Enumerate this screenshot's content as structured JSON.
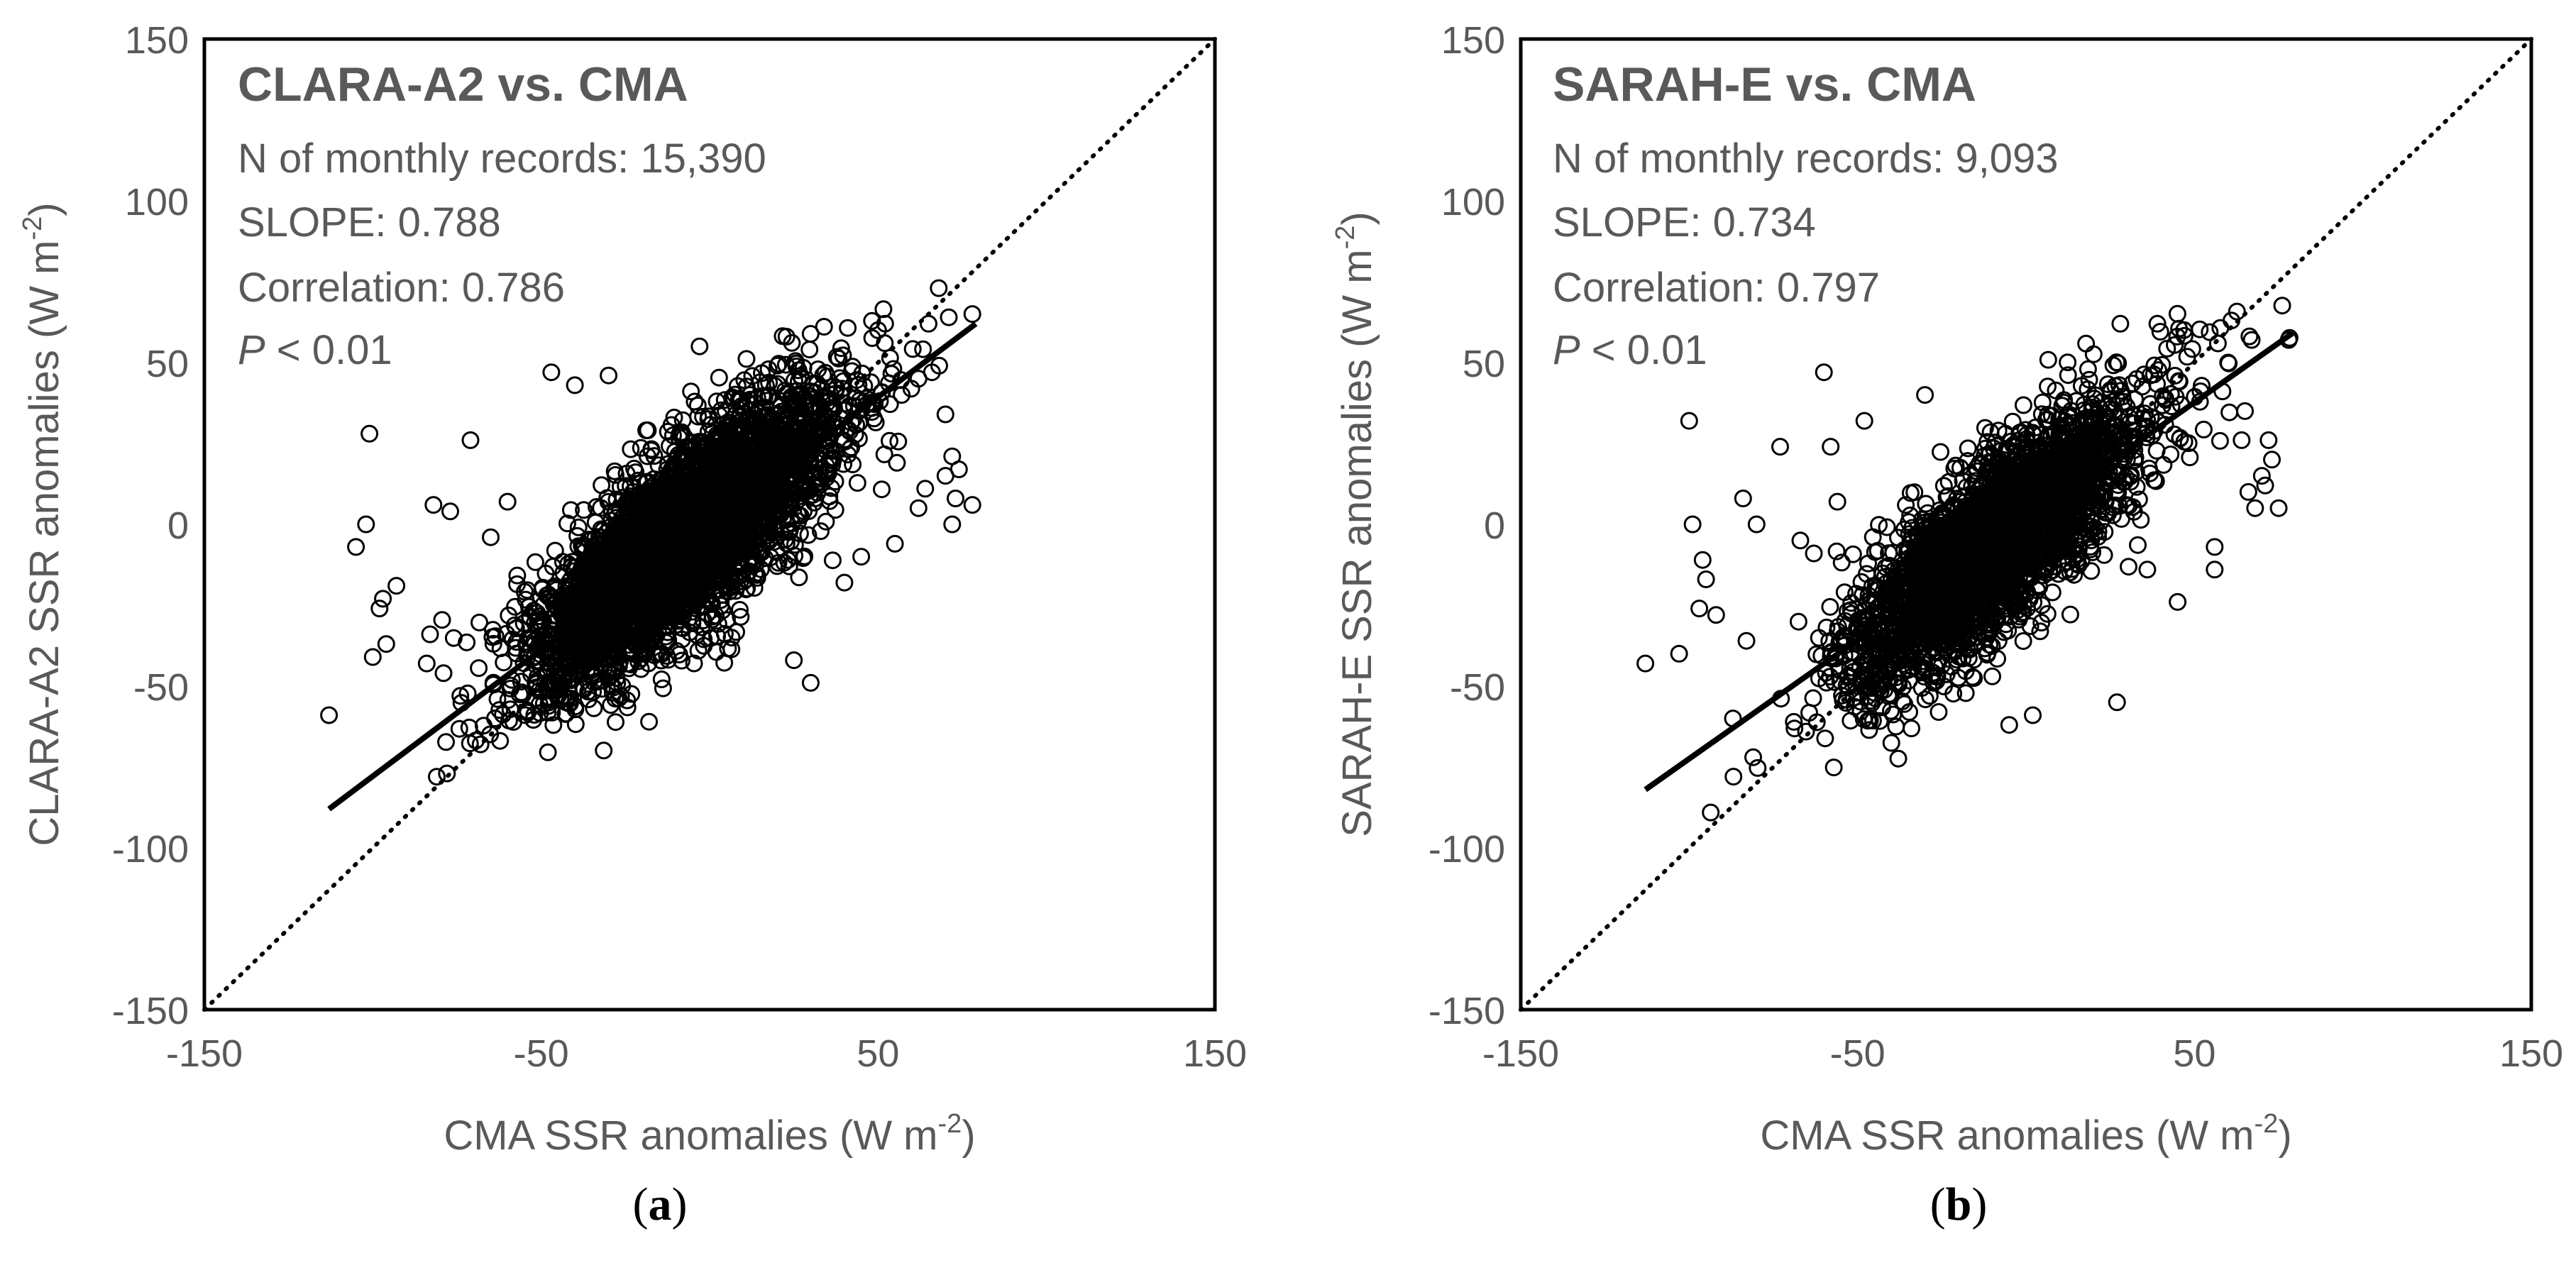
{
  "chart_data": [
    {
      "type": "scatter",
      "panel_label": "a",
      "title": "CLARA-A2 vs. CMA",
      "stats": {
        "n_records": "N of monthly records: 15,390",
        "slope": "SLOPE: 0.788",
        "correlation": "Correlation: 0.786",
        "p_symbol": "P",
        "p_rest": " < 0.01"
      },
      "xlabel_main": "CMA SSR anomalies (W m",
      "xlabel_sup": "-2",
      "xlabel_end": ")",
      "ylabel_main": "CLARA-A2 SSR anomalies (W m",
      "ylabel_sup": "-2",
      "ylabel_end": ")",
      "xlim": [
        -150,
        150
      ],
      "ylim": [
        -150,
        150
      ],
      "xticks": [
        -150,
        -50,
        50,
        150
      ],
      "yticks": [
        -150,
        -100,
        -50,
        0,
        50,
        100,
        150
      ],
      "fit_line": {
        "slope": 0.788,
        "x": [
          -113,
          79
        ],
        "y": [
          -88,
          62
        ]
      },
      "identity_line": true,
      "cloud": {
        "n_points": 15390,
        "center": [
          -8,
          -5
        ],
        "spread": [
          22,
          22
        ],
        "correlation": 0.786
      },
      "outliers": [
        [
          -113,
          -59
        ],
        [
          -105,
          -7
        ],
        [
          -102,
          0
        ],
        [
          -101,
          28
        ],
        [
          -100,
          -41
        ],
        [
          -98,
          -26
        ],
        [
          -97,
          -23
        ],
        [
          -96,
          -37
        ],
        [
          -93,
          -19
        ],
        [
          -84,
          -43
        ],
        [
          -83,
          -34
        ],
        [
          -82,
          6
        ],
        [
          -81,
          -78
        ],
        [
          -79,
          -46
        ],
        [
          -78,
          -77
        ],
        [
          -77,
          4
        ],
        [
          -74,
          -53
        ],
        [
          -71,
          26
        ],
        [
          -68,
          -68
        ],
        [
          -65,
          -4
        ],
        [
          -63,
          -54
        ],
        [
          -60,
          7
        ],
        [
          -47,
          47
        ],
        [
          -40,
          43
        ],
        [
          -30,
          46
        ],
        [
          -18,
          -61
        ],
        [
          -3,
          55
        ],
        [
          30,
          -49
        ],
        [
          25,
          -42
        ],
        [
          50,
          60
        ],
        [
          52,
          56
        ],
        [
          55,
          -6
        ],
        [
          62,
          5
        ],
        [
          64,
          11
        ],
        [
          65,
          62
        ],
        [
          68,
          73
        ],
        [
          70,
          15
        ],
        [
          71,
          64
        ],
        [
          72,
          0
        ],
        [
          72,
          21
        ],
        [
          73,
          8
        ],
        [
          74,
          17
        ],
        [
          78,
          6
        ],
        [
          78,
          65
        ],
        [
          45,
          -10
        ],
        [
          40,
          -18
        ],
        [
          57,
          40
        ],
        [
          62,
          45
        ],
        [
          66,
          47
        ],
        [
          70,
          34
        ]
      ]
    },
    {
      "type": "scatter",
      "panel_label": "b",
      "title": "SARAH-E vs. CMA",
      "stats": {
        "n_records": "N of monthly records: 9,093",
        "slope": "SLOPE: 0.734",
        "correlation": "Correlation: 0.797",
        "p_symbol": "P",
        "p_rest": " < 0.01"
      },
      "xlabel_main": "CMA SSR anomalies (W m",
      "xlabel_sup": "-2",
      "xlabel_end": ")",
      "ylabel_main": "SARAH-E SSR anomalies (W m",
      "ylabel_sup": "-2",
      "ylabel_end": ")",
      "xlim": [
        -150,
        150
      ],
      "ylim": [
        -150,
        150
      ],
      "xticks": [
        -150,
        -50,
        50,
        150
      ],
      "yticks": [
        -150,
        -100,
        -50,
        0,
        50,
        100,
        150
      ],
      "fit_line": {
        "slope": 0.734,
        "x": [
          -113,
          79
        ],
        "y": [
          -82,
          59
        ]
      },
      "identity_line": true,
      "cloud": {
        "n_points": 9093,
        "center": [
          -8,
          -5
        ],
        "spread": [
          21,
          21
        ],
        "correlation": 0.797
      },
      "outliers": [
        [
          -113,
          -43
        ],
        [
          -103,
          -40
        ],
        [
          -100,
          32
        ],
        [
          -99,
          0
        ],
        [
          -97,
          -26
        ],
        [
          -96,
          -11
        ],
        [
          -95,
          -17
        ],
        [
          -92,
          -28
        ],
        [
          -87,
          -60
        ],
        [
          -84,
          8
        ],
        [
          -83,
          -36
        ],
        [
          -81,
          -72
        ],
        [
          -80,
          0
        ],
        [
          -73,
          24
        ],
        [
          -67,
          -5
        ],
        [
          -63,
          -9
        ],
        [
          -60,
          47
        ],
        [
          -58,
          24
        ],
        [
          -56,
          7
        ],
        [
          -48,
          32
        ],
        [
          -30,
          40
        ],
        [
          -10,
          -47
        ],
        [
          -5,
          -62
        ],
        [
          2,
          -59
        ],
        [
          27,
          -55
        ],
        [
          28,
          62
        ],
        [
          36,
          -14
        ],
        [
          39,
          62
        ],
        [
          46,
          37
        ],
        [
          56,
          -14
        ],
        [
          56,
          -7
        ],
        [
          61,
          63
        ],
        [
          64,
          26
        ],
        [
          65,
          35
        ],
        [
          66,
          10
        ],
        [
          67,
          57
        ],
        [
          68,
          5
        ],
        [
          70,
          15
        ],
        [
          71,
          12
        ],
        [
          72,
          26
        ],
        [
          73,
          20
        ],
        [
          75,
          5
        ],
        [
          78,
          57
        ],
        [
          45,
          -24
        ],
        [
          60,
          50
        ]
      ]
    }
  ]
}
